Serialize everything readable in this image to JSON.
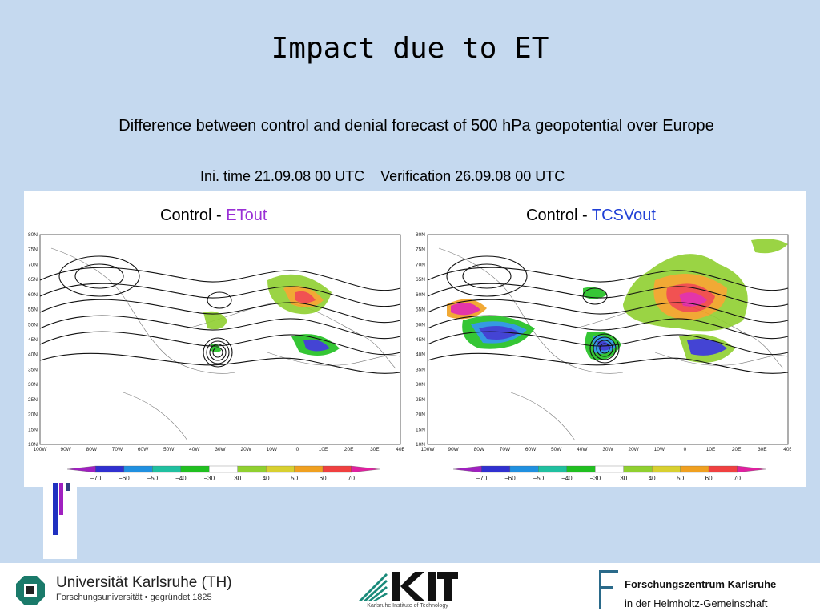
{
  "slide": {
    "title": "Impact due to ET",
    "subtitle": "Difference between control and denial forecast of 500 hPa geopotential over Europe",
    "timeline": "Ini. time 21.09.08 00 UTC    Verification 26.09.08 00 UTC"
  },
  "panels": [
    {
      "prefix": "Control - ",
      "experiment": "ETout",
      "experiment_color": "#9a2fd6"
    },
    {
      "prefix": "Control - ",
      "experiment": "TCSVout",
      "experiment_color": "#1f3fd6"
    }
  ],
  "map_axes": {
    "lat_labels": [
      "80N",
      "75N",
      "70N",
      "65N",
      "60N",
      "55N",
      "50N",
      "45N",
      "40N",
      "35N",
      "30N",
      "25N",
      "20N",
      "15N",
      "10N"
    ],
    "lon_labels": [
      "100W",
      "90W",
      "80W",
      "70W",
      "60W",
      "50W",
      "40W",
      "30W",
      "20W",
      "10W",
      "0",
      "10E",
      "20E",
      "30E",
      "40E"
    ]
  },
  "colorbar": {
    "labels": [
      "-70",
      "-60",
      "-50",
      "-40",
      "-30",
      "30",
      "40",
      "50",
      "60",
      "70"
    ],
    "colors": [
      "#a020c0",
      "#3030d0",
      "#2090e0",
      "#20c0a0",
      "#20c020",
      "#ffffff",
      "#90d030",
      "#d8d030",
      "#f0a020",
      "#f04040",
      "#e020a0"
    ]
  },
  "footer": {
    "university_name": "Universität Karlsruhe (TH)",
    "university_sub": "Forschungsuniversität • gegründet 1825",
    "kit_caption": "Karlsruhe Institute of Technology",
    "fz_name": "Forschungszentrum Karlsruhe",
    "fz_sub": "in der Helmholtz-Gemeinschaft"
  },
  "colors": {
    "background": "#c5d9ef",
    "panel": "#ffffff"
  }
}
